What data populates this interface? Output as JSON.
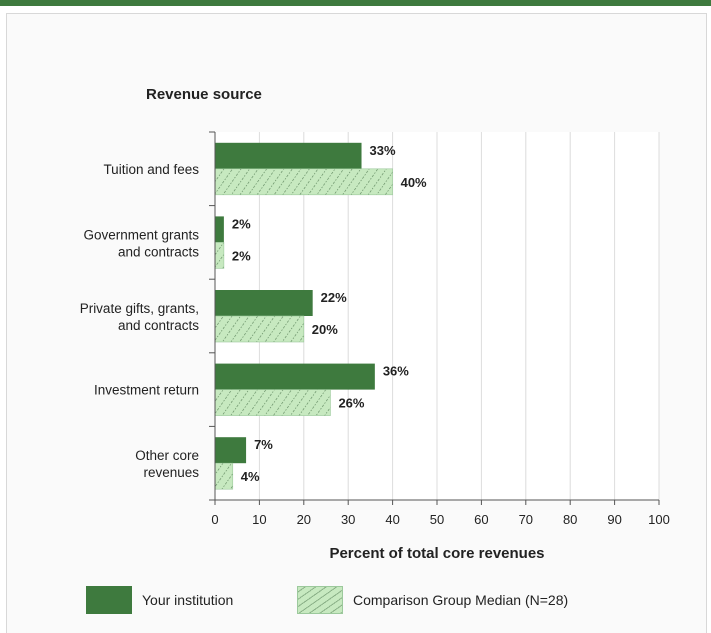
{
  "colors": {
    "primary": "#3e7a3e",
    "comparison_fill": "#c7e9c0",
    "comparison_hatch": "#5a825a",
    "grid": "#dcdcdc",
    "top_rule": "#3e7a3e"
  },
  "chart_data": {
    "type": "bar",
    "orientation": "horizontal",
    "title": "Revenue source",
    "xlabel": "Percent of total core revenues",
    "ylabel": "",
    "xlim": [
      0,
      100
    ],
    "xticks": [
      0,
      10,
      20,
      30,
      40,
      50,
      60,
      70,
      80,
      90,
      100
    ],
    "grid": true,
    "legend_position": "bottom",
    "categories": [
      [
        "Tuition and fees"
      ],
      [
        "Government grants",
        "and contracts"
      ],
      [
        "Private gifts, grants,",
        "and contracts"
      ],
      [
        "Investment return"
      ],
      [
        "Other core",
        "revenues"
      ]
    ],
    "series": [
      {
        "name": "Your institution",
        "values": [
          33,
          2,
          22,
          36,
          7
        ],
        "labels": [
          "33%",
          "2%",
          "22%",
          "36%",
          "7%"
        ]
      },
      {
        "name": "Comparison Group Median (N=28)",
        "values": [
          40,
          2,
          20,
          26,
          4
        ],
        "labels": [
          "40%",
          "2%",
          "20%",
          "26%",
          "4%"
        ]
      }
    ]
  }
}
